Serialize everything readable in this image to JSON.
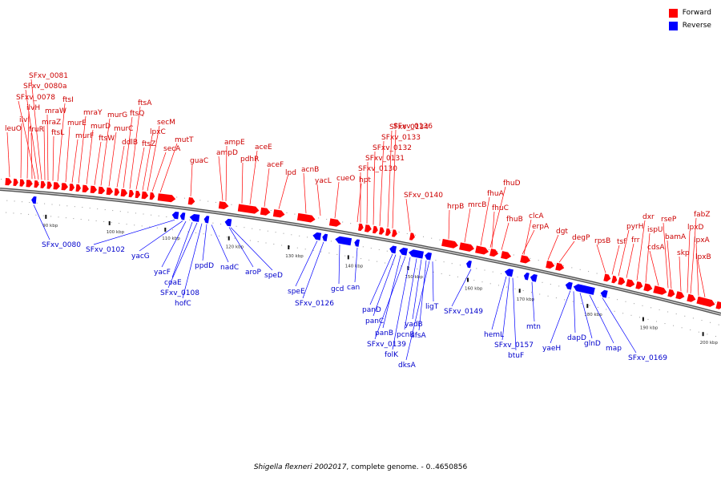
{
  "legend": {
    "forward_label": "Forward",
    "reverse_label": "Reverse",
    "forward_color": "#ff0000",
    "reverse_color": "#0000ff"
  },
  "caption": {
    "organism": "Shigella flexneri 2002017",
    "rest": ", complete genome. - 0..4650856"
  },
  "axis": {
    "ticks": [
      "90 kbp",
      "100 kbp",
      "110 kbp",
      "120 kbp",
      "130 kbp",
      "140 kbp",
      "150 kbp",
      "160 kbp",
      "170 kbp",
      "180 kbp",
      "190 kbp",
      "200 kbp"
    ]
  },
  "forward_genes": [
    "leuO",
    "ilvI",
    "ilvH",
    "fruR",
    "SFxv_0078",
    "SFxv_0080a",
    "SFxv_0081",
    "mraZ",
    "mraW",
    "ftsL",
    "ftsI",
    "murE",
    "murF",
    "mraY",
    "murD",
    "ftsW",
    "murG",
    "murC",
    "ddlB",
    "ftsQ",
    "ftsA",
    "ftsZ",
    "lpxC",
    "secM",
    "secA",
    "mutT",
    "guaC",
    "ampD",
    "ampE",
    "pdhR",
    "aceE",
    "aceF",
    "lpd",
    "acnB",
    "yacL",
    "cueO",
    "hpt",
    "SFxv_0130",
    "SFxv_0131",
    "SFxv_0132",
    "SFxv_0133",
    "SFxv_0134",
    "SFxv_0136",
    "SFxv_0140",
    "hrpB",
    "mrcB",
    "fhuA",
    "fhuC",
    "fhuD",
    "fhuB",
    "clcA",
    "erpA",
    "dgt",
    "degP",
    "rpsB",
    "tsf",
    "pyrH",
    "frr",
    "dxr",
    "ispU",
    "cdsA",
    "rseP",
    "bamA",
    "skp",
    "lpxD",
    "fabZ",
    "lpxA",
    "lpxB"
  ],
  "reverse_genes": [
    "SFxv_0080",
    "SFxv_0102",
    "yacG",
    "yacF",
    "coaE",
    "SFxv_0108",
    "hofC",
    "ppdD",
    "nadC",
    "aroP",
    "speD",
    "speE",
    "SFxv_0126",
    "gcd",
    "can",
    "panD",
    "panC",
    "panB",
    "SFxv_0139",
    "folK",
    "pcnB",
    "yadB",
    "sfsA",
    "dksA",
    "ligT",
    "SFxv_0149",
    "hemL",
    "SFxv_0157",
    "btuF",
    "mtn",
    "yaeH",
    "dapD",
    "glnD",
    "map",
    "SFxv_0169"
  ]
}
